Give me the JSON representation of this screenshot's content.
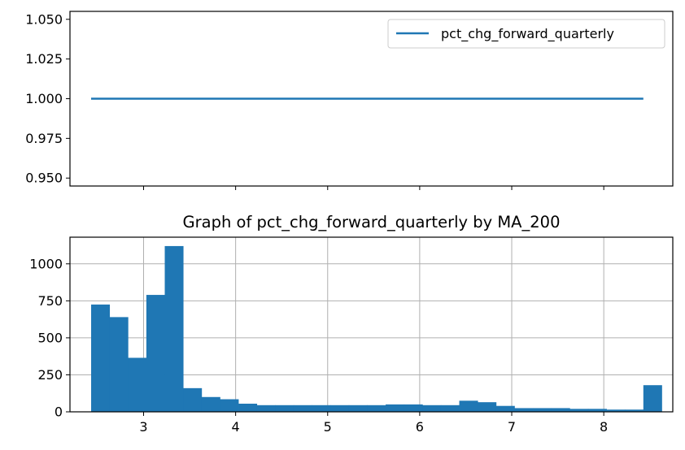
{
  "chart_data": [
    {
      "type": "line",
      "title": "",
      "xlabel": "",
      "ylabel": "",
      "ylim": [
        0.945,
        1.055
      ],
      "xlim": [
        2.2,
        8.75
      ],
      "yticks": [
        "0.950",
        "0.975",
        "1.000",
        "1.025",
        "1.050"
      ],
      "ytick_values": [
        0.95,
        0.975,
        1.0,
        1.025,
        1.05
      ],
      "xtick_values": [
        3,
        4,
        5,
        6,
        7,
        8
      ],
      "grid": false,
      "legend_position": "upper-right",
      "series": [
        {
          "name": "pct_chg_forward_quarterly",
          "color": "#1f77b4",
          "x": [
            2.43,
            8.43
          ],
          "y": [
            1.0,
            1.0
          ]
        }
      ]
    },
    {
      "type": "bar",
      "title": "Graph of pct_chg_forward_quarterly by MA_200",
      "xlabel": "",
      "ylabel": "",
      "xlim": [
        2.2,
        8.75
      ],
      "ylim": [
        0,
        1180
      ],
      "xticks": [
        "3",
        "4",
        "5",
        "6",
        "7",
        "8"
      ],
      "xtick_values": [
        3,
        4,
        5,
        6,
        7,
        8
      ],
      "yticks": [
        "0",
        "250",
        "500",
        "750",
        "1000"
      ],
      "ytick_values": [
        0,
        250,
        500,
        750,
        1000
      ],
      "grid": true,
      "color": "#1f77b4",
      "bin_start": 2.43,
      "bin_width": 0.2,
      "values": [
        725,
        640,
        365,
        790,
        1120,
        160,
        100,
        85,
        55,
        45,
        45,
        45,
        45,
        45,
        45,
        45,
        50,
        50,
        45,
        45,
        75,
        65,
        40,
        25,
        25,
        25,
        20,
        20,
        15,
        15,
        180
      ]
    }
  ]
}
